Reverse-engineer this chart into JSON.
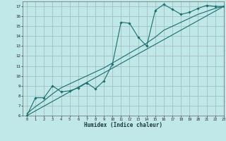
{
  "title": "",
  "xlabel": "Humidex (Indice chaleur)",
  "ylabel": "",
  "bg_color": "#c0e8e8",
  "grid_color": "#a0b8b8",
  "line_color": "#1a6e6e",
  "xlim": [
    -0.5,
    23
  ],
  "ylim": [
    6,
    17.5
  ],
  "xticks": [
    0,
    1,
    2,
    3,
    4,
    5,
    6,
    7,
    8,
    9,
    10,
    11,
    12,
    13,
    14,
    15,
    16,
    17,
    18,
    19,
    20,
    21,
    22,
    23
  ],
  "yticks": [
    6,
    7,
    8,
    9,
    10,
    11,
    12,
    13,
    14,
    15,
    16,
    17
  ],
  "curve1_x": [
    0,
    1,
    2,
    3,
    4,
    5,
    6,
    7,
    8,
    9,
    10,
    11,
    12,
    13,
    14,
    15,
    16,
    17,
    18,
    19,
    20,
    21,
    22,
    23
  ],
  "curve1_y": [
    6.0,
    7.8,
    7.8,
    9.0,
    8.4,
    8.5,
    8.8,
    9.3,
    8.7,
    9.5,
    11.2,
    15.4,
    15.3,
    13.9,
    13.0,
    16.6,
    17.2,
    16.7,
    16.2,
    16.4,
    16.8,
    17.1,
    17.0,
    17.0
  ],
  "curve2_x": [
    0,
    23
  ],
  "curve2_y": [
    6.0,
    17.0
  ],
  "curve3_x": [
    0,
    1,
    2,
    3,
    4,
    5,
    6,
    7,
    8,
    9,
    10,
    11,
    12,
    13,
    14,
    15,
    16,
    17,
    18,
    19,
    20,
    21,
    22,
    23
  ],
  "curve3_y": [
    6.2,
    6.9,
    7.5,
    8.2,
    8.8,
    9.2,
    9.6,
    10.0,
    10.4,
    10.8,
    11.3,
    11.8,
    12.3,
    12.8,
    13.3,
    13.9,
    14.6,
    15.0,
    15.4,
    15.8,
    16.2,
    16.5,
    16.8,
    17.0
  ]
}
